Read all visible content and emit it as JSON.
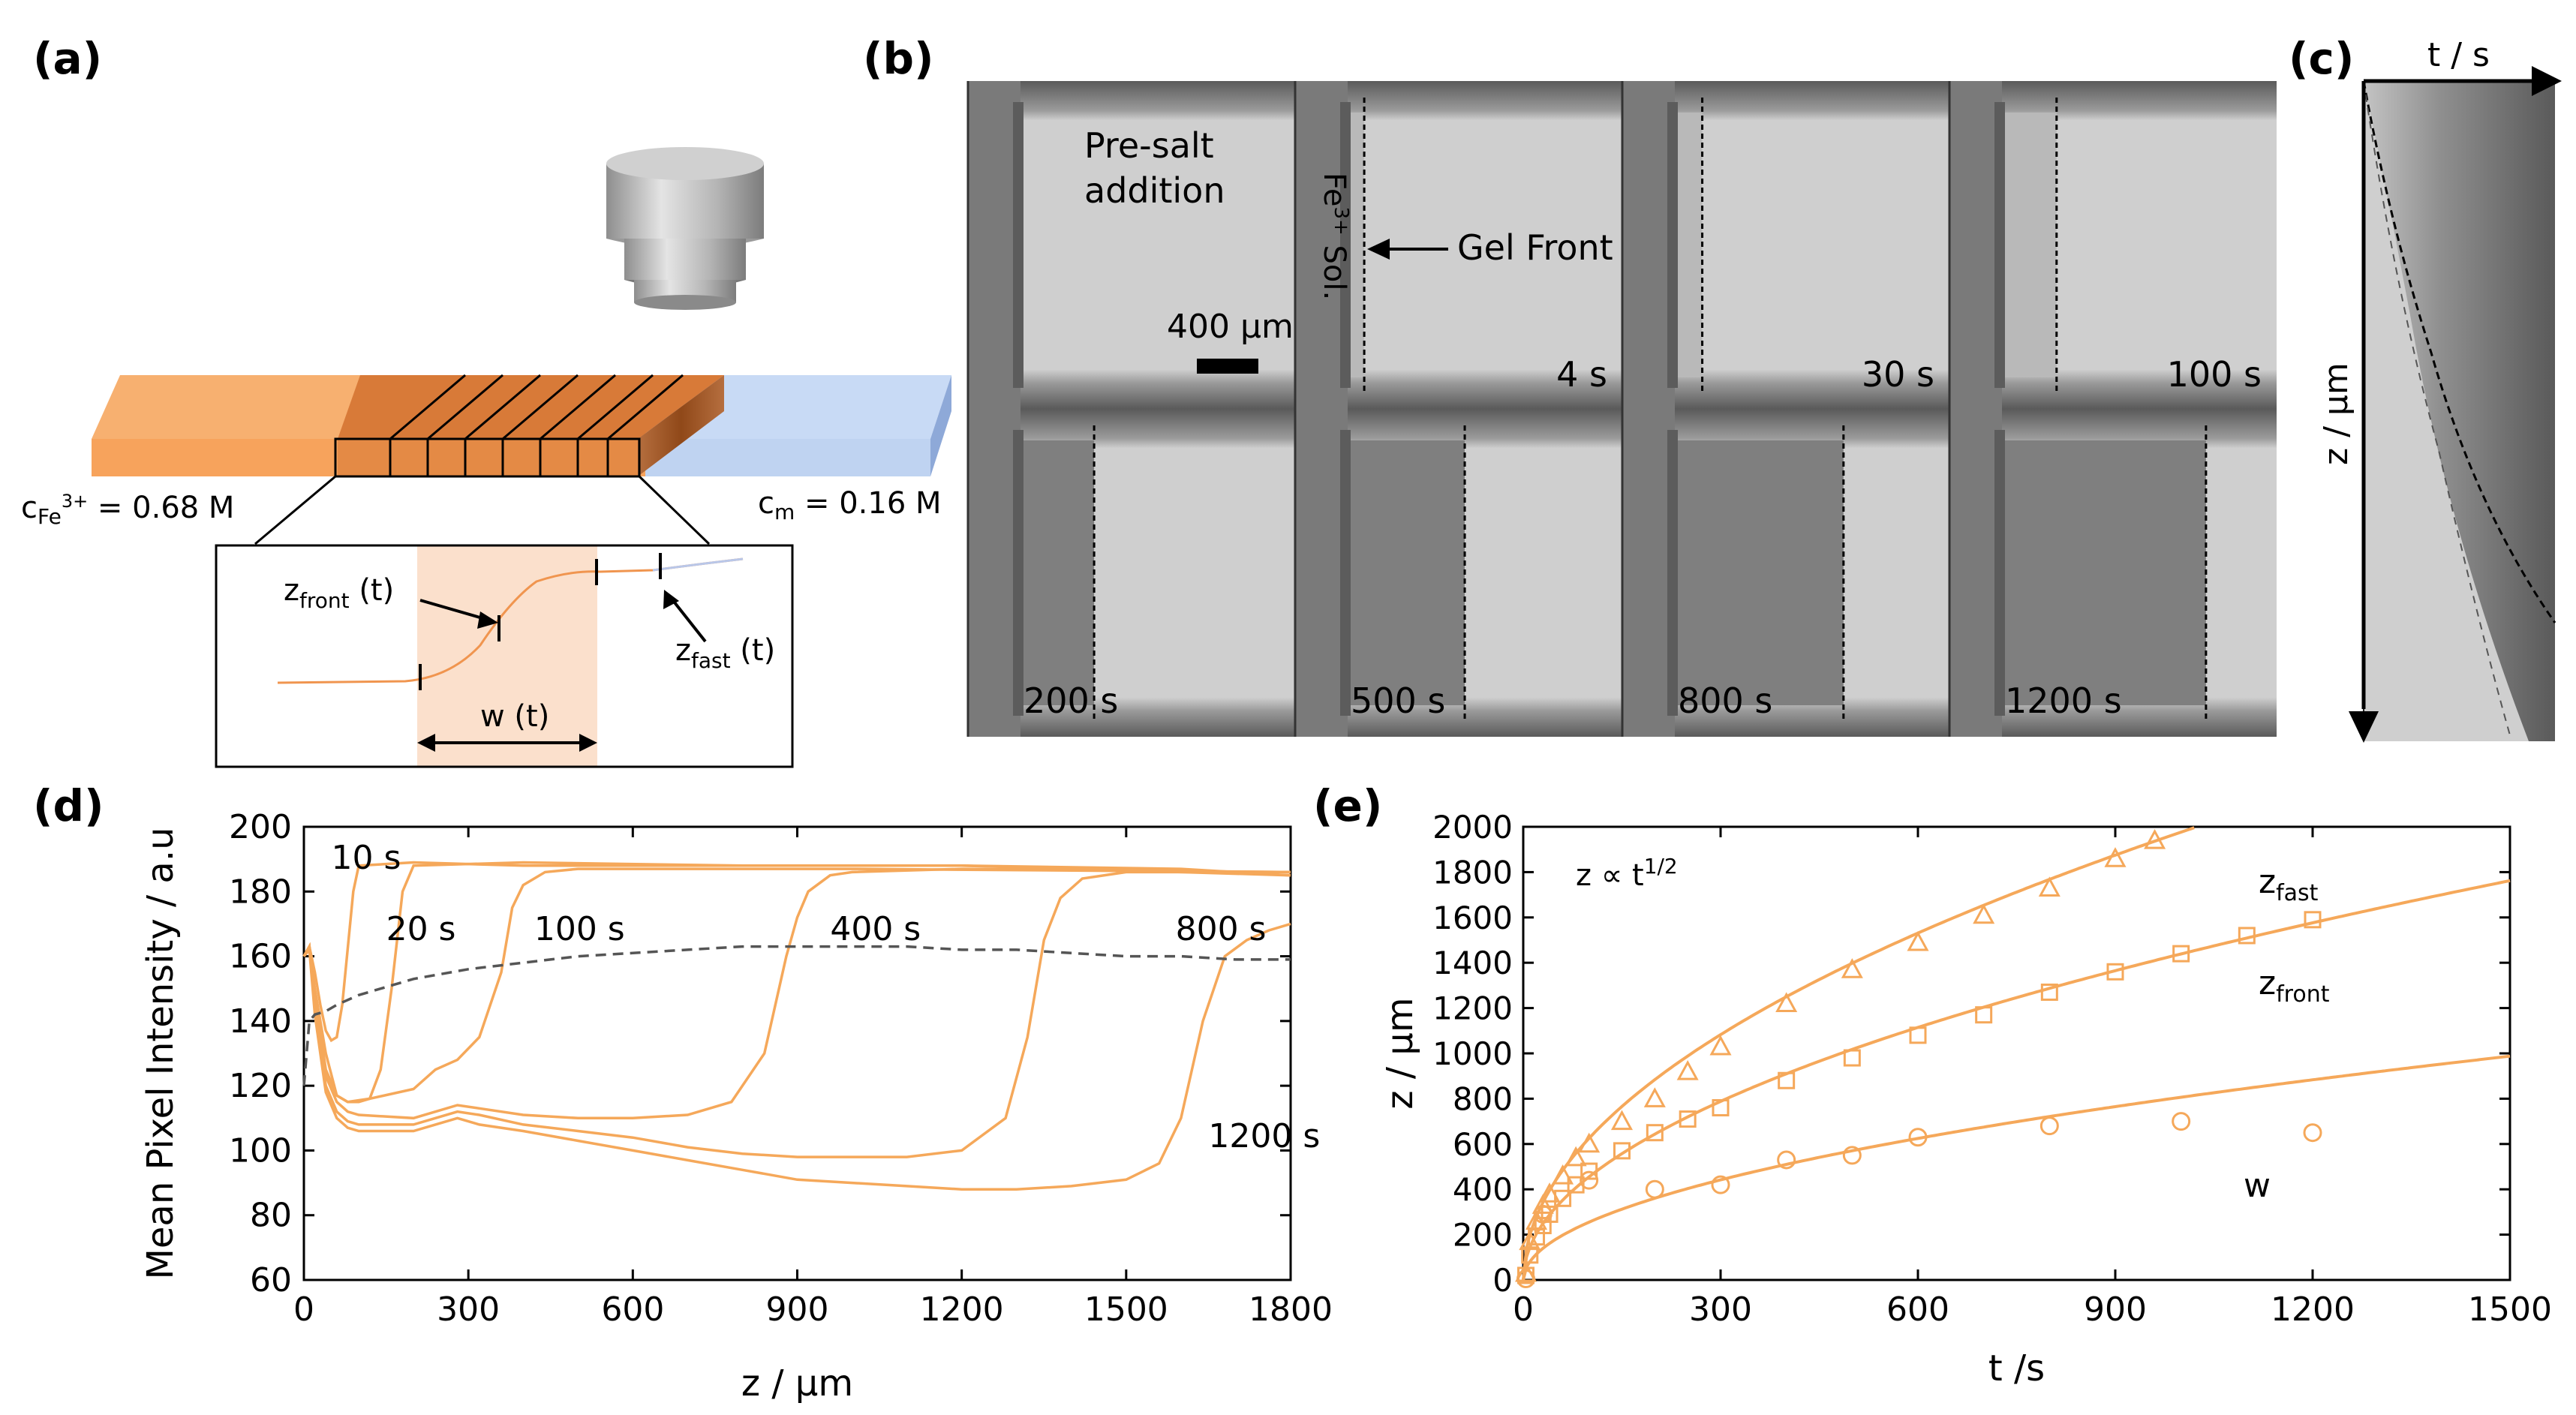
{
  "figure": {
    "panel_labels": [
      "(a)",
      "(b)",
      "(c)",
      "(d)",
      "(e)"
    ],
    "colors": {
      "orange_curve": "#f5a85a",
      "orange_slab": "#f7a35c",
      "blue_slab": "#bcd3f2",
      "frame_black": "#000000"
    }
  },
  "panel_a": {
    "c_fe_prefix": "c",
    "c_fe_sub": "Fe",
    "c_fe_sup": "3+",
    "c_fe_value": " = 0.68 M",
    "c_m_prefix": "c",
    "c_m_sub": "m",
    "c_m_value": " = 0.16 M",
    "z_front_main": "z",
    "z_front_sub": "front",
    "z_front_arg": " (t)",
    "z_fast_main": "z",
    "z_fast_sub": "fast",
    "z_fast_arg": " (t)",
    "w_label": "w (t)",
    "icons": [
      "cylinder-probe-icon"
    ]
  },
  "panel_b": {
    "frame_times": [
      "",
      "4 s",
      "30 s",
      "100 s",
      "200 s",
      "500 s",
      "800 s",
      "1200 s"
    ],
    "pre_salt_line1": "Pre-salt",
    "pre_salt_line2": "addition",
    "scale_bar_text": "400 μm",
    "fe_sol_main": "Fe",
    "fe_sol_sup": "3+",
    "fe_sol_rest": " Sol.",
    "gel_front_text": "Gel Front",
    "gel_front_fraction": [
      0,
      0.05,
      0.09,
      0.19,
      0.26,
      0.42,
      0.61,
      0.74
    ]
  },
  "panel_c": {
    "x_axis_label": "t / s",
    "y_axis_label": "z / μm"
  },
  "chart_data": [
    {
      "type": "line",
      "panel": "(d)",
      "xlabel": "z / μm",
      "ylabel": "Mean Pixel Intensity / a.u",
      "xlim": [
        0,
        1800
      ],
      "ylim": [
        60,
        200
      ],
      "xticks": [
        0,
        300,
        600,
        900,
        1200,
        1500,
        1800
      ],
      "yticks": [
        60,
        80,
        100,
        120,
        140,
        160,
        180,
        200
      ],
      "series": [
        {
          "name": "10 s",
          "style": "solid",
          "x": [
            0,
            10,
            20,
            30,
            40,
            50,
            60,
            70,
            90,
            100,
            200,
            400,
            800,
            1200,
            1600,
            1800
          ],
          "y": [
            160,
            163,
            155,
            145,
            137,
            134,
            135,
            145,
            180,
            188,
            189,
            188,
            188,
            188,
            187,
            185
          ]
        },
        {
          "name": "20 s",
          "style": "solid",
          "x": [
            0,
            10,
            20,
            40,
            60,
            80,
            100,
            120,
            140,
            160,
            180,
            200,
            400,
            800,
            1200,
            1800
          ],
          "y": [
            160,
            163,
            150,
            130,
            117,
            115,
            115,
            116,
            125,
            150,
            180,
            188,
            189,
            188,
            188,
            185
          ]
        },
        {
          "name": "100 s",
          "style": "solid",
          "x": [
            0,
            10,
            20,
            40,
            60,
            80,
            120,
            200,
            240,
            280,
            320,
            360,
            380,
            400,
            440,
            500,
            1000,
            1800
          ],
          "y": [
            160,
            163,
            148,
            125,
            117,
            115,
            116,
            119,
            125,
            128,
            135,
            155,
            175,
            182,
            186,
            187,
            187,
            186
          ]
        },
        {
          "name": "400 s",
          "style": "solid",
          "x": [
            0,
            10,
            20,
            40,
            60,
            80,
            100,
            200,
            240,
            280,
            320,
            400,
            500,
            600,
            700,
            780,
            840,
            880,
            900,
            920,
            960,
            1000,
            1200,
            1800
          ],
          "y": [
            160,
            163,
            145,
            123,
            115,
            112,
            111,
            110,
            112,
            114,
            113,
            111,
            110,
            110,
            111,
            115,
            130,
            160,
            172,
            180,
            185,
            186,
            187,
            186
          ]
        },
        {
          "name": "800 s",
          "style": "solid",
          "x": [
            0,
            10,
            20,
            40,
            60,
            80,
            100,
            200,
            240,
            280,
            320,
            400,
            500,
            600,
            700,
            800,
            900,
            1000,
            1100,
            1200,
            1280,
            1320,
            1350,
            1380,
            1420,
            1500,
            1800
          ],
          "y": [
            160,
            163,
            143,
            120,
            112,
            109,
            108,
            108,
            110,
            112,
            111,
            108,
            106,
            104,
            101,
            99,
            98,
            98,
            98,
            100,
            110,
            135,
            165,
            178,
            184,
            186,
            186
          ]
        },
        {
          "name": "1200 s",
          "style": "solid",
          "x": [
            0,
            10,
            20,
            40,
            60,
            80,
            100,
            200,
            240,
            280,
            320,
            400,
            500,
            600,
            700,
            800,
            900,
            1000,
            1100,
            1200,
            1300,
            1400,
            1500,
            1560,
            1600,
            1640,
            1680,
            1720,
            1760,
            1800
          ],
          "y": [
            160,
            162,
            142,
            118,
            110,
            107,
            106,
            106,
            108,
            110,
            108,
            106,
            103,
            100,
            97,
            94,
            91,
            90,
            89,
            88,
            88,
            89,
            91,
            96,
            110,
            140,
            160,
            165,
            168,
            170
          ]
        },
        {
          "name": "",
          "style": "dashed",
          "x": [
            0,
            10,
            20,
            40,
            60,
            100,
            200,
            300,
            400,
            500,
            600,
            700,
            800,
            900,
            1000,
            1100,
            1200,
            1300,
            1400,
            1500,
            1600,
            1700,
            1800
          ],
          "y": [
            120,
            140,
            142,
            143,
            145,
            148,
            153,
            156,
            158,
            160,
            161,
            162,
            163,
            163,
            163,
            163,
            162,
            162,
            161,
            160,
            160,
            159,
            159
          ]
        }
      ],
      "curve_labels": [
        {
          "text": "10 s",
          "x": 50,
          "y": 187
        },
        {
          "text": "20 s",
          "x": 150,
          "y": 165
        },
        {
          "text": "100 s",
          "x": 420,
          "y": 165
        },
        {
          "text": "400 s",
          "x": 960,
          "y": 165
        },
        {
          "text": "800 s",
          "x": 1590,
          "y": 165
        },
        {
          "text": "1200 s",
          "x": 1650,
          "y": 101
        }
      ]
    },
    {
      "type": "scatter",
      "panel": "(e)",
      "xlabel": "t /s",
      "ylabel": "z / μm",
      "xlim": [
        0,
        1500
      ],
      "ylim": [
        0,
        2000
      ],
      "xticks": [
        0,
        300,
        600,
        900,
        1200,
        1500
      ],
      "yticks": [
        0,
        200,
        400,
        600,
        800,
        1000,
        1200,
        1400,
        1600,
        1800,
        2000
      ],
      "annotation": "z ∝ t",
      "annotation_sup": "1/2",
      "series": [
        {
          "name": "z",
          "name_sub": "fast",
          "marker": "triangle",
          "fit_coefficient": 62.5,
          "t": [
            4,
            10,
            20,
            30,
            40,
            60,
            80,
            100,
            150,
            200,
            250,
            300,
            400,
            500,
            600,
            700,
            800,
            900,
            960
          ],
          "z": [
            30,
            170,
            260,
            330,
            380,
            460,
            540,
            600,
            700,
            800,
            920,
            1030,
            1220,
            1370,
            1490,
            1610,
            1730,
            1860,
            1940
          ]
        },
        {
          "name": "z",
          "name_sub": "front",
          "marker": "square",
          "fit_coefficient": 45.5,
          "t": [
            4,
            10,
            20,
            30,
            40,
            60,
            80,
            100,
            150,
            200,
            250,
            300,
            400,
            500,
            600,
            700,
            800,
            900,
            1000,
            1100,
            1200
          ],
          "z": [
            20,
            110,
            190,
            240,
            290,
            360,
            420,
            480,
            570,
            650,
            710,
            760,
            880,
            980,
            1080,
            1170,
            1270,
            1360,
            1440,
            1520,
            1590
          ]
        },
        {
          "name": "w",
          "name_sub": "",
          "marker": "circle",
          "fit_coefficient": 25.5,
          "t": [
            4,
            30,
            100,
            200,
            300,
            400,
            500,
            600,
            800,
            1000,
            1200
          ],
          "z": [
            5,
            290,
            440,
            400,
            420,
            530,
            550,
            630,
            680,
            700,
            650
          ]
        }
      ]
    }
  ]
}
